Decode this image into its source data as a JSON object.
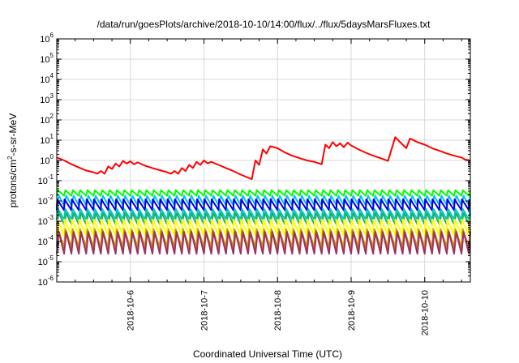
{
  "chart_data": {
    "type": "line",
    "title": "/data/run/goesPlots/archive/2018-10-10/14:00/flux/../flux/5daysMarsFluxes.txt",
    "xlabel": "Coordinated Universal Time (UTC)",
    "ylabel": "protons/cm2-s-sr-MeV",
    "yscale": "log",
    "ylim_exponent": [
      -6,
      6
    ],
    "xlim_days": [
      5.0,
      10.62
    ],
    "x_ticks": [
      {
        "day": 6,
        "label": "2018-10-6"
      },
      {
        "day": 7,
        "label": "2018-10-7"
      },
      {
        "day": 8,
        "label": "2018-10-8"
      },
      {
        "day": 9,
        "label": "2018-10-9"
      },
      {
        "day": 10,
        "label": "2018-10-10"
      }
    ],
    "y_ticks": [
      {
        "base": "10",
        "exp": "6"
      },
      {
        "base": "10",
        "exp": "5"
      },
      {
        "base": "10",
        "exp": "4"
      },
      {
        "base": "10",
        "exp": "3"
      },
      {
        "base": "10",
        "exp": "2"
      },
      {
        "base": "10",
        "exp": "1"
      },
      {
        "base": "10",
        "exp": "0"
      },
      {
        "base": "10",
        "exp": "-1"
      },
      {
        "base": "10",
        "exp": "-2"
      },
      {
        "base": "10",
        "exp": "-3"
      },
      {
        "base": "10",
        "exp": "-4"
      },
      {
        "base": "10",
        "exp": "-5"
      },
      {
        "base": "10",
        "exp": "-6"
      }
    ],
    "grid": true,
    "legend": "none",
    "series": [
      {
        "color": "#ff0000",
        "style": "thick",
        "points": [
          [
            5.0,
            1.4
          ],
          [
            5.1,
            1.0
          ],
          [
            5.2,
            0.65
          ],
          [
            5.3,
            0.45
          ],
          [
            5.4,
            0.32
          ],
          [
            5.5,
            0.26
          ],
          [
            5.55,
            0.22
          ],
          [
            5.6,
            0.3
          ],
          [
            5.65,
            0.22
          ],
          [
            5.7,
            0.5
          ],
          [
            5.75,
            0.38
          ],
          [
            5.8,
            0.7
          ],
          [
            5.85,
            0.5
          ],
          [
            5.9,
            0.95
          ],
          [
            5.95,
            0.7
          ],
          [
            6.0,
            0.9
          ],
          [
            6.05,
            0.65
          ],
          [
            6.1,
            0.8
          ],
          [
            6.2,
            0.55
          ],
          [
            6.3,
            0.42
          ],
          [
            6.4,
            0.33
          ],
          [
            6.5,
            0.26
          ],
          [
            6.55,
            0.22
          ],
          [
            6.6,
            0.3
          ],
          [
            6.65,
            0.22
          ],
          [
            6.7,
            0.42
          ],
          [
            6.75,
            0.3
          ],
          [
            6.8,
            0.6
          ],
          [
            6.85,
            0.42
          ],
          [
            6.9,
            0.85
          ],
          [
            6.95,
            0.6
          ],
          [
            7.0,
            1.0
          ],
          [
            7.05,
            0.72
          ],
          [
            7.1,
            0.85
          ],
          [
            7.2,
            0.6
          ],
          [
            7.3,
            0.42
          ],
          [
            7.4,
            0.3
          ],
          [
            7.5,
            0.2
          ],
          [
            7.6,
            0.14
          ],
          [
            7.65,
            0.12
          ],
          [
            7.7,
            1.0
          ],
          [
            7.75,
            0.6
          ],
          [
            7.8,
            3.5
          ],
          [
            7.85,
            2.2
          ],
          [
            7.9,
            5.0
          ],
          [
            8.0,
            4.0
          ],
          [
            8.1,
            2.5
          ],
          [
            8.2,
            1.7
          ],
          [
            8.3,
            1.3
          ],
          [
            8.4,
            1.0
          ],
          [
            8.5,
            0.85
          ],
          [
            8.6,
            0.65
          ],
          [
            8.65,
            6.0
          ],
          [
            8.7,
            4.0
          ],
          [
            8.75,
            8.0
          ],
          [
            8.8,
            5.0
          ],
          [
            8.85,
            7.0
          ],
          [
            8.9,
            4.5
          ],
          [
            8.95,
            7.5
          ],
          [
            9.0,
            5.5
          ],
          [
            9.1,
            3.5
          ],
          [
            9.2,
            2.4
          ],
          [
            9.3,
            1.7
          ],
          [
            9.4,
            1.3
          ],
          [
            9.5,
            0.95
          ],
          [
            9.6,
            14.0
          ],
          [
            9.65,
            9.0
          ],
          [
            9.7,
            6.0
          ],
          [
            9.75,
            4.0
          ],
          [
            9.8,
            12.0
          ],
          [
            9.9,
            8.0
          ],
          [
            10.0,
            6.0
          ],
          [
            10.1,
            4.0
          ],
          [
            10.2,
            3.0
          ],
          [
            10.3,
            2.2
          ],
          [
            10.4,
            1.7
          ],
          [
            10.5,
            1.4
          ],
          [
            10.55,
            1.1
          ],
          [
            10.62,
            1.0
          ]
        ]
      },
      {
        "color": "#00ff00",
        "style": "sawtooth",
        "peak": 0.034,
        "trough": 0.018,
        "period_days": 0.1
      },
      {
        "color": "#00bfff",
        "style": "sawtooth",
        "peak": 0.018,
        "trough": 0.006,
        "period_days": 0.1
      },
      {
        "color": "#0000e0",
        "style": "sawtooth",
        "peak": 0.012,
        "trough": 0.0035,
        "period_days": 0.1
      },
      {
        "color": "#00c8c8",
        "style": "sawtooth",
        "peak": 0.004,
        "trough": 0.0012,
        "period_days": 0.1
      },
      {
        "color": "#20b060",
        "style": "sawtooth",
        "peak": 0.0025,
        "trough": 0.0007,
        "period_days": 0.1
      },
      {
        "color": "#ffff00",
        "style": "sawtooth",
        "peak": 0.0012,
        "trough": 0.0002,
        "period_days": 0.1
      },
      {
        "color": "#c89600",
        "style": "sawtooth",
        "peak": 0.0004,
        "trough": 5e-05,
        "period_days": 0.1
      },
      {
        "color": "#a03060",
        "style": "sawtooth",
        "peak": 0.0003,
        "trough": 2.5e-05,
        "period_days": 0.1
      }
    ]
  }
}
